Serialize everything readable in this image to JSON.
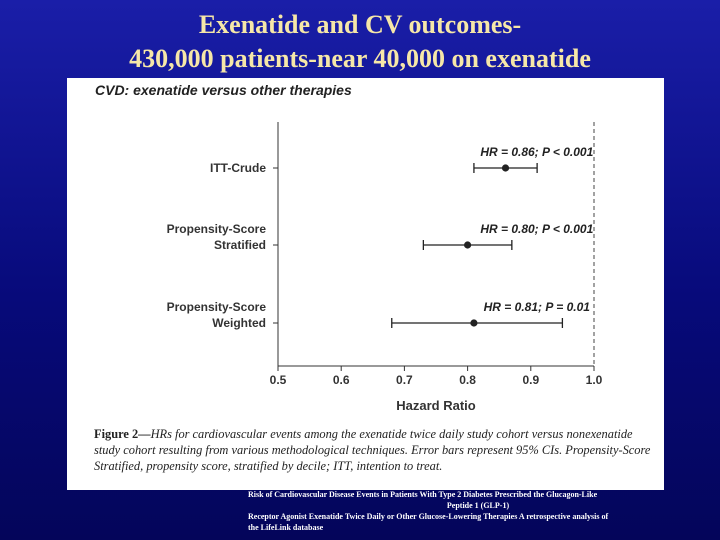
{
  "slide": {
    "title_line1": "Exenatide and CV outcomes-",
    "title_line2": "430,000 patients-near 40,000 on exenatide"
  },
  "figure": {
    "header": "CVD: exenatide versus other therapies",
    "caption_label": "Figure 2—",
    "caption_text": "HRs for cardiovascular events among the exenatide twice daily study cohort versus nonexenatide study cohort resulting from various methodological techniques. Error bars represent 95% CIs. Propensity-Score Stratified, propensity score, stratified by decile; ITT, intention to treat."
  },
  "source": {
    "line1": "Risk of Cardiovascular Disease Events in Patients With Type 2 Diabetes Prescribed the Glucagon-Like",
    "line2": "Peptide 1 (GLP-1)",
    "line3": "Receptor Agonist Exenatide Twice Daily or Other Glucose-Lowering Therapies A retrospective analysis of",
    "line4": "the LifeLink database"
  },
  "colors": {
    "background": "#0a0e8c",
    "title": "#f6e7a8",
    "marker": "#222222"
  },
  "chart_data": {
    "type": "scatter",
    "subtype": "forest-plot",
    "title": "CVD: exenatide versus other therapies",
    "xlabel": "Hazard Ratio",
    "xlim": [
      0.5,
      1.0
    ],
    "xticks": [
      "0.5",
      "0.6",
      "0.7",
      "0.8",
      "0.9",
      "1.0"
    ],
    "reference_line": 1.0,
    "rows": [
      {
        "label_lines": [
          "ITT-Crude"
        ],
        "hr": 0.86,
        "ci_low": 0.81,
        "ci_high": 0.91,
        "annotation": "HR = 0.86; P < 0.001"
      },
      {
        "label_lines": [
          "Propensity-Score",
          "Stratified"
        ],
        "hr": 0.8,
        "ci_low": 0.73,
        "ci_high": 0.87,
        "annotation": "HR = 0.80; P < 0.001"
      },
      {
        "label_lines": [
          "Propensity-Score",
          "Weighted"
        ],
        "hr": 0.81,
        "ci_low": 0.68,
        "ci_high": 0.95,
        "annotation": "HR = 0.81; P = 0.01"
      }
    ]
  }
}
